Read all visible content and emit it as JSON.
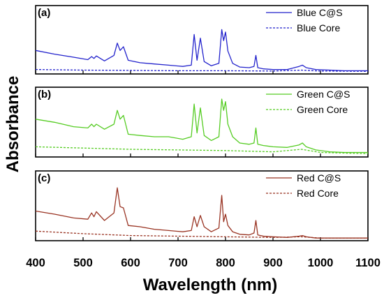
{
  "chart_data": {
    "type": "line",
    "xlabel": "Wavelength  (nm)",
    "ylabel": "Absorbance",
    "xlim": [
      400,
      1100
    ],
    "x_ticks": [
      "400",
      "500",
      "600",
      "700",
      "800",
      "900",
      "1000",
      "1100"
    ],
    "y_ticks_shown": false,
    "panels": [
      {
        "label": "(a)",
        "color": "#2222cc",
        "legend_position": "top-right",
        "series": [
          {
            "name": "Blue C@S",
            "style": "solid",
            "x": [
              400,
              440,
              480,
              510,
              518,
              523,
              528,
              545,
              565,
              572,
              578,
              585,
              595,
              620,
              650,
              680,
              710,
              728,
              734,
              740,
              747,
              755,
              770,
              786,
              792,
              796,
              800,
              805,
              815,
              830,
              850,
              860,
              864,
              868,
              880,
              900,
              930,
              955,
              962,
              970,
              990,
              1020,
              1050,
              1100
            ],
            "y": [
              0.36,
              0.3,
              0.25,
              0.21,
              0.26,
              0.23,
              0.27,
              0.19,
              0.28,
              0.48,
              0.36,
              0.42,
              0.2,
              0.16,
              0.14,
              0.12,
              0.1,
              0.12,
              0.62,
              0.2,
              0.56,
              0.18,
              0.11,
              0.15,
              0.7,
              0.52,
              0.66,
              0.35,
              0.15,
              0.09,
              0.08,
              0.1,
              0.28,
              0.08,
              0.06,
              0.05,
              0.05,
              0.1,
              0.12,
              0.08,
              0.05,
              0.04,
              0.03,
              0.03
            ]
          },
          {
            "name": "Blue Core",
            "style": "dashed",
            "x": [
              400,
              500,
              600,
              700,
              800,
              900,
              960,
              1000,
              1100
            ],
            "y": [
              0.05,
              0.04,
              0.035,
              0.03,
              0.03,
              0.025,
              0.04,
              0.025,
              0.02
            ]
          }
        ]
      },
      {
        "label": "(b)",
        "color": "#55cc22",
        "legend_position": "top-right",
        "series": [
          {
            "name": "Green C@S",
            "style": "solid",
            "x": [
              400,
              440,
              480,
              510,
              518,
              523,
              528,
              545,
              565,
              572,
              578,
              585,
              595,
              620,
              650,
              680,
              710,
              728,
              734,
              740,
              747,
              755,
              770,
              786,
              792,
              796,
              800,
              805,
              815,
              830,
              850,
              860,
              864,
              868,
              880,
              900,
              930,
              955,
              962,
              970,
              990,
              1020,
              1050,
              1100
            ],
            "y": [
              0.58,
              0.53,
              0.46,
              0.44,
              0.5,
              0.46,
              0.5,
              0.42,
              0.5,
              0.72,
              0.58,
              0.64,
              0.34,
              0.32,
              0.3,
              0.3,
              0.26,
              0.3,
              0.82,
              0.36,
              0.76,
              0.32,
              0.24,
              0.3,
              0.9,
              0.72,
              0.86,
              0.5,
              0.3,
              0.2,
              0.18,
              0.2,
              0.44,
              0.18,
              0.16,
              0.14,
              0.13,
              0.17,
              0.2,
              0.14,
              0.09,
              0.06,
              0.05,
              0.05
            ]
          },
          {
            "name": "Green Core",
            "style": "dashed",
            "x": [
              400,
              500,
              600,
              700,
              800,
              900,
              960,
              1000,
              1100
            ],
            "y": [
              0.14,
              0.12,
              0.1,
              0.09,
              0.08,
              0.06,
              0.1,
              0.05,
              0.03
            ]
          }
        ]
      },
      {
        "label": "(c)",
        "color": "#993322",
        "legend_position": "top-right",
        "series": [
          {
            "name": "Red C@S",
            "style": "solid",
            "x": [
              400,
              440,
              480,
              510,
              518,
              523,
              528,
              545,
              565,
              572,
              578,
              585,
              595,
              620,
              650,
              680,
              710,
              728,
              734,
              740,
              747,
              755,
              770,
              786,
              792,
              796,
              800,
              805,
              815,
              830,
              850,
              860,
              864,
              868,
              880,
              900,
              930,
              955,
              962,
              970,
              990,
              1020,
              1050,
              1100
            ],
            "y": [
              0.45,
              0.4,
              0.34,
              0.32,
              0.42,
              0.36,
              0.44,
              0.3,
              0.42,
              0.82,
              0.52,
              0.5,
              0.22,
              0.2,
              0.16,
              0.14,
              0.12,
              0.14,
              0.36,
              0.2,
              0.38,
              0.2,
              0.12,
              0.18,
              0.7,
              0.28,
              0.4,
              0.22,
              0.12,
              0.08,
              0.07,
              0.1,
              0.3,
              0.07,
              0.05,
              0.04,
              0.03,
              0.05,
              0.06,
              0.04,
              0.02,
              0.02,
              0.02,
              0.02
            ]
          },
          {
            "name": "Red Core",
            "style": "dashed",
            "x": [
              400,
              500,
              600,
              700,
              800,
              900,
              960,
              1000,
              1100
            ],
            "y": [
              0.13,
              0.09,
              0.06,
              0.05,
              0.04,
              0.03,
              0.04,
              0.02,
              0.02
            ]
          }
        ]
      }
    ]
  }
}
